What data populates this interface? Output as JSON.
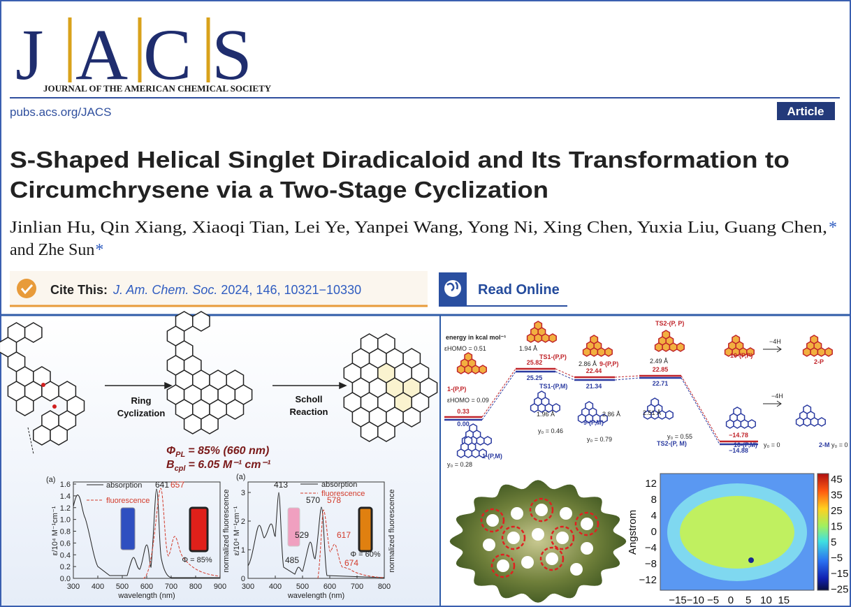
{
  "header": {
    "logo_letters": [
      "J",
      "A",
      "C",
      "S"
    ],
    "journal_name": "JOURNAL OF THE AMERICAN CHEMICAL SOCIETY",
    "url": "pubs.acs.org/JACS",
    "article_type": "Article"
  },
  "article": {
    "title_lines": [
      "S-Shaped Helical Singlet Diradicaloid and Its Transformation to",
      "Circumchrysene via a Two-Stage Cyclization"
    ],
    "author_lines": [
      "Jinlian Hu, Qin Xiang, Xiaoqi Tian, Lei Ye, Yanpei Wang, Yong Ni, Xing Chen, Yuxia Liu, Guang Chen,",
      "and Zhe Sun"
    ],
    "corresponding_mark": "*",
    "cite_label": "Cite This:",
    "cite_journal": "J. Am. Chem. Soc.",
    "cite_details": "2024, 146, 10321−10330",
    "read_online": "Read Online"
  },
  "graphical_abstract": {
    "scheme": {
      "step1": [
        "Ring",
        "Cyclization"
      ],
      "step2": [
        "Scholl",
        "Reaction"
      ],
      "phi": {
        "symbol": "Φ",
        "subscript": "PL",
        "value": "= 85% (660 nm)"
      },
      "b": {
        "symbol": "B",
        "subscript": "cpl",
        "value": "= 6.05 M⁻¹ cm⁻¹"
      }
    },
    "spectrum_1": {
      "panel": "(a)",
      "legend": [
        "absorption",
        "fluorescence"
      ],
      "x_label": "wavelength (nm)",
      "y_label": "ε/10⁴ M⁻¹cm⁻¹",
      "y2_label": "normalized fluorescence",
      "xticks": [
        "300",
        "400",
        "500",
        "600",
        "700",
        "800",
        "900"
      ],
      "yticks": [
        "0.0",
        "0.2",
        "0.4",
        "0.6",
        "0.8",
        "1.0",
        "1.2",
        "1.4",
        "1.6"
      ],
      "peak_labels": [
        "641",
        "657"
      ],
      "quantum_yield": "Φ = 85%"
    },
    "spectrum_2": {
      "panel": "(a)",
      "legend": [
        "absorption",
        "fluorescence"
      ],
      "x_label": "wavelength (nm)",
      "y_label": "ε/10⁴ M⁻¹cm⁻¹",
      "y2_label": "normalized fluorescence",
      "xticks": [
        "300",
        "400",
        "500",
        "600",
        "700",
        "800"
      ],
      "yticks": [
        "0",
        "1",
        "2",
        "3"
      ],
      "peak_labels": [
        "413",
        "570",
        "578",
        "529",
        "485",
        "617",
        "674"
      ],
      "quantum_yield": "Φ = 60%"
    },
    "energy_diagram": {
      "unit": "energy in kcal mol⁻¹",
      "energies": [
        "0.33",
        "0.00",
        "25.82",
        "25.25",
        "22.44",
        "21.34",
        "22.85",
        "22.71",
        "−14.78",
        "−14.88"
      ],
      "species": [
        "1-(P,P)",
        "1-(P,M)",
        "TS1-(P,P)",
        "TS1-(P,M)",
        "9-(P,P)",
        "9-(P,M)",
        "TS2-(P, P)",
        "TS2-(P, M)",
        "10-(P,P)",
        "10-(P,M)",
        "2-P",
        "2-M"
      ],
      "notes": [
        "εHOMO = 0.51",
        "εHOMO = 0.09",
        "1.94 Å",
        "2.86 Å",
        "2.49 Å",
        "1.96 Å",
        "2.86 Å",
        "2.51 Å",
        "y₀ = 0.28",
        "y₀ = 0.46",
        "y₀ = 0.79",
        "y₀ = 0.55",
        "y₀ = 0",
        "y₀ = 0",
        "−4H",
        "−4H"
      ]
    },
    "heatmap": {
      "y_label": "Angstrom",
      "xticks": [
        "−15",
        "−10",
        "−5",
        "0",
        "5",
        "10",
        "15"
      ],
      "yticks": [
        "12",
        "8",
        "4",
        "0",
        "−4",
        "−8",
        "−12"
      ],
      "colorbar_ticks": [
        "45",
        "35",
        "25",
        "15",
        "5",
        "−5",
        "−15",
        "−25"
      ]
    }
  }
}
